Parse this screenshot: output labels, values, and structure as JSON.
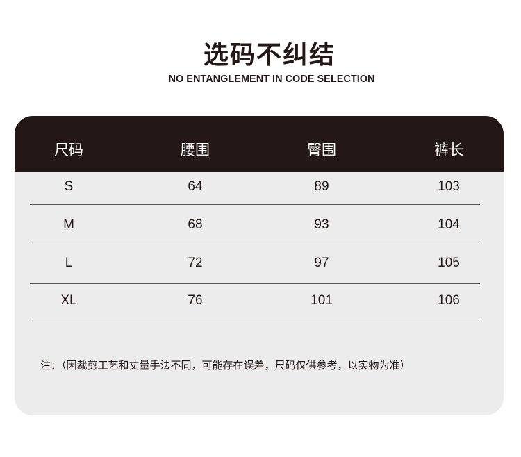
{
  "title": "选码不纠结",
  "subtitle": "NO ENTANGLEMENT IN CODE SELECTION",
  "table": {
    "headers": [
      "尺码",
      "腰围",
      "臀围",
      "裤长"
    ],
    "rows": [
      [
        "S",
        "64",
        "89",
        "103"
      ],
      [
        "M",
        "68",
        "93",
        "104"
      ],
      [
        "L",
        "72",
        "97",
        "105"
      ],
      [
        "XL",
        "76",
        "101",
        "106"
      ]
    ]
  },
  "note": "注：（因裁剪工艺和丈量手法不同，可能存在误差，尺码仅供参考，以实物为准）",
  "colors": {
    "header_bg": "#231815",
    "body_bg": "#ececec",
    "text": "#231815"
  }
}
